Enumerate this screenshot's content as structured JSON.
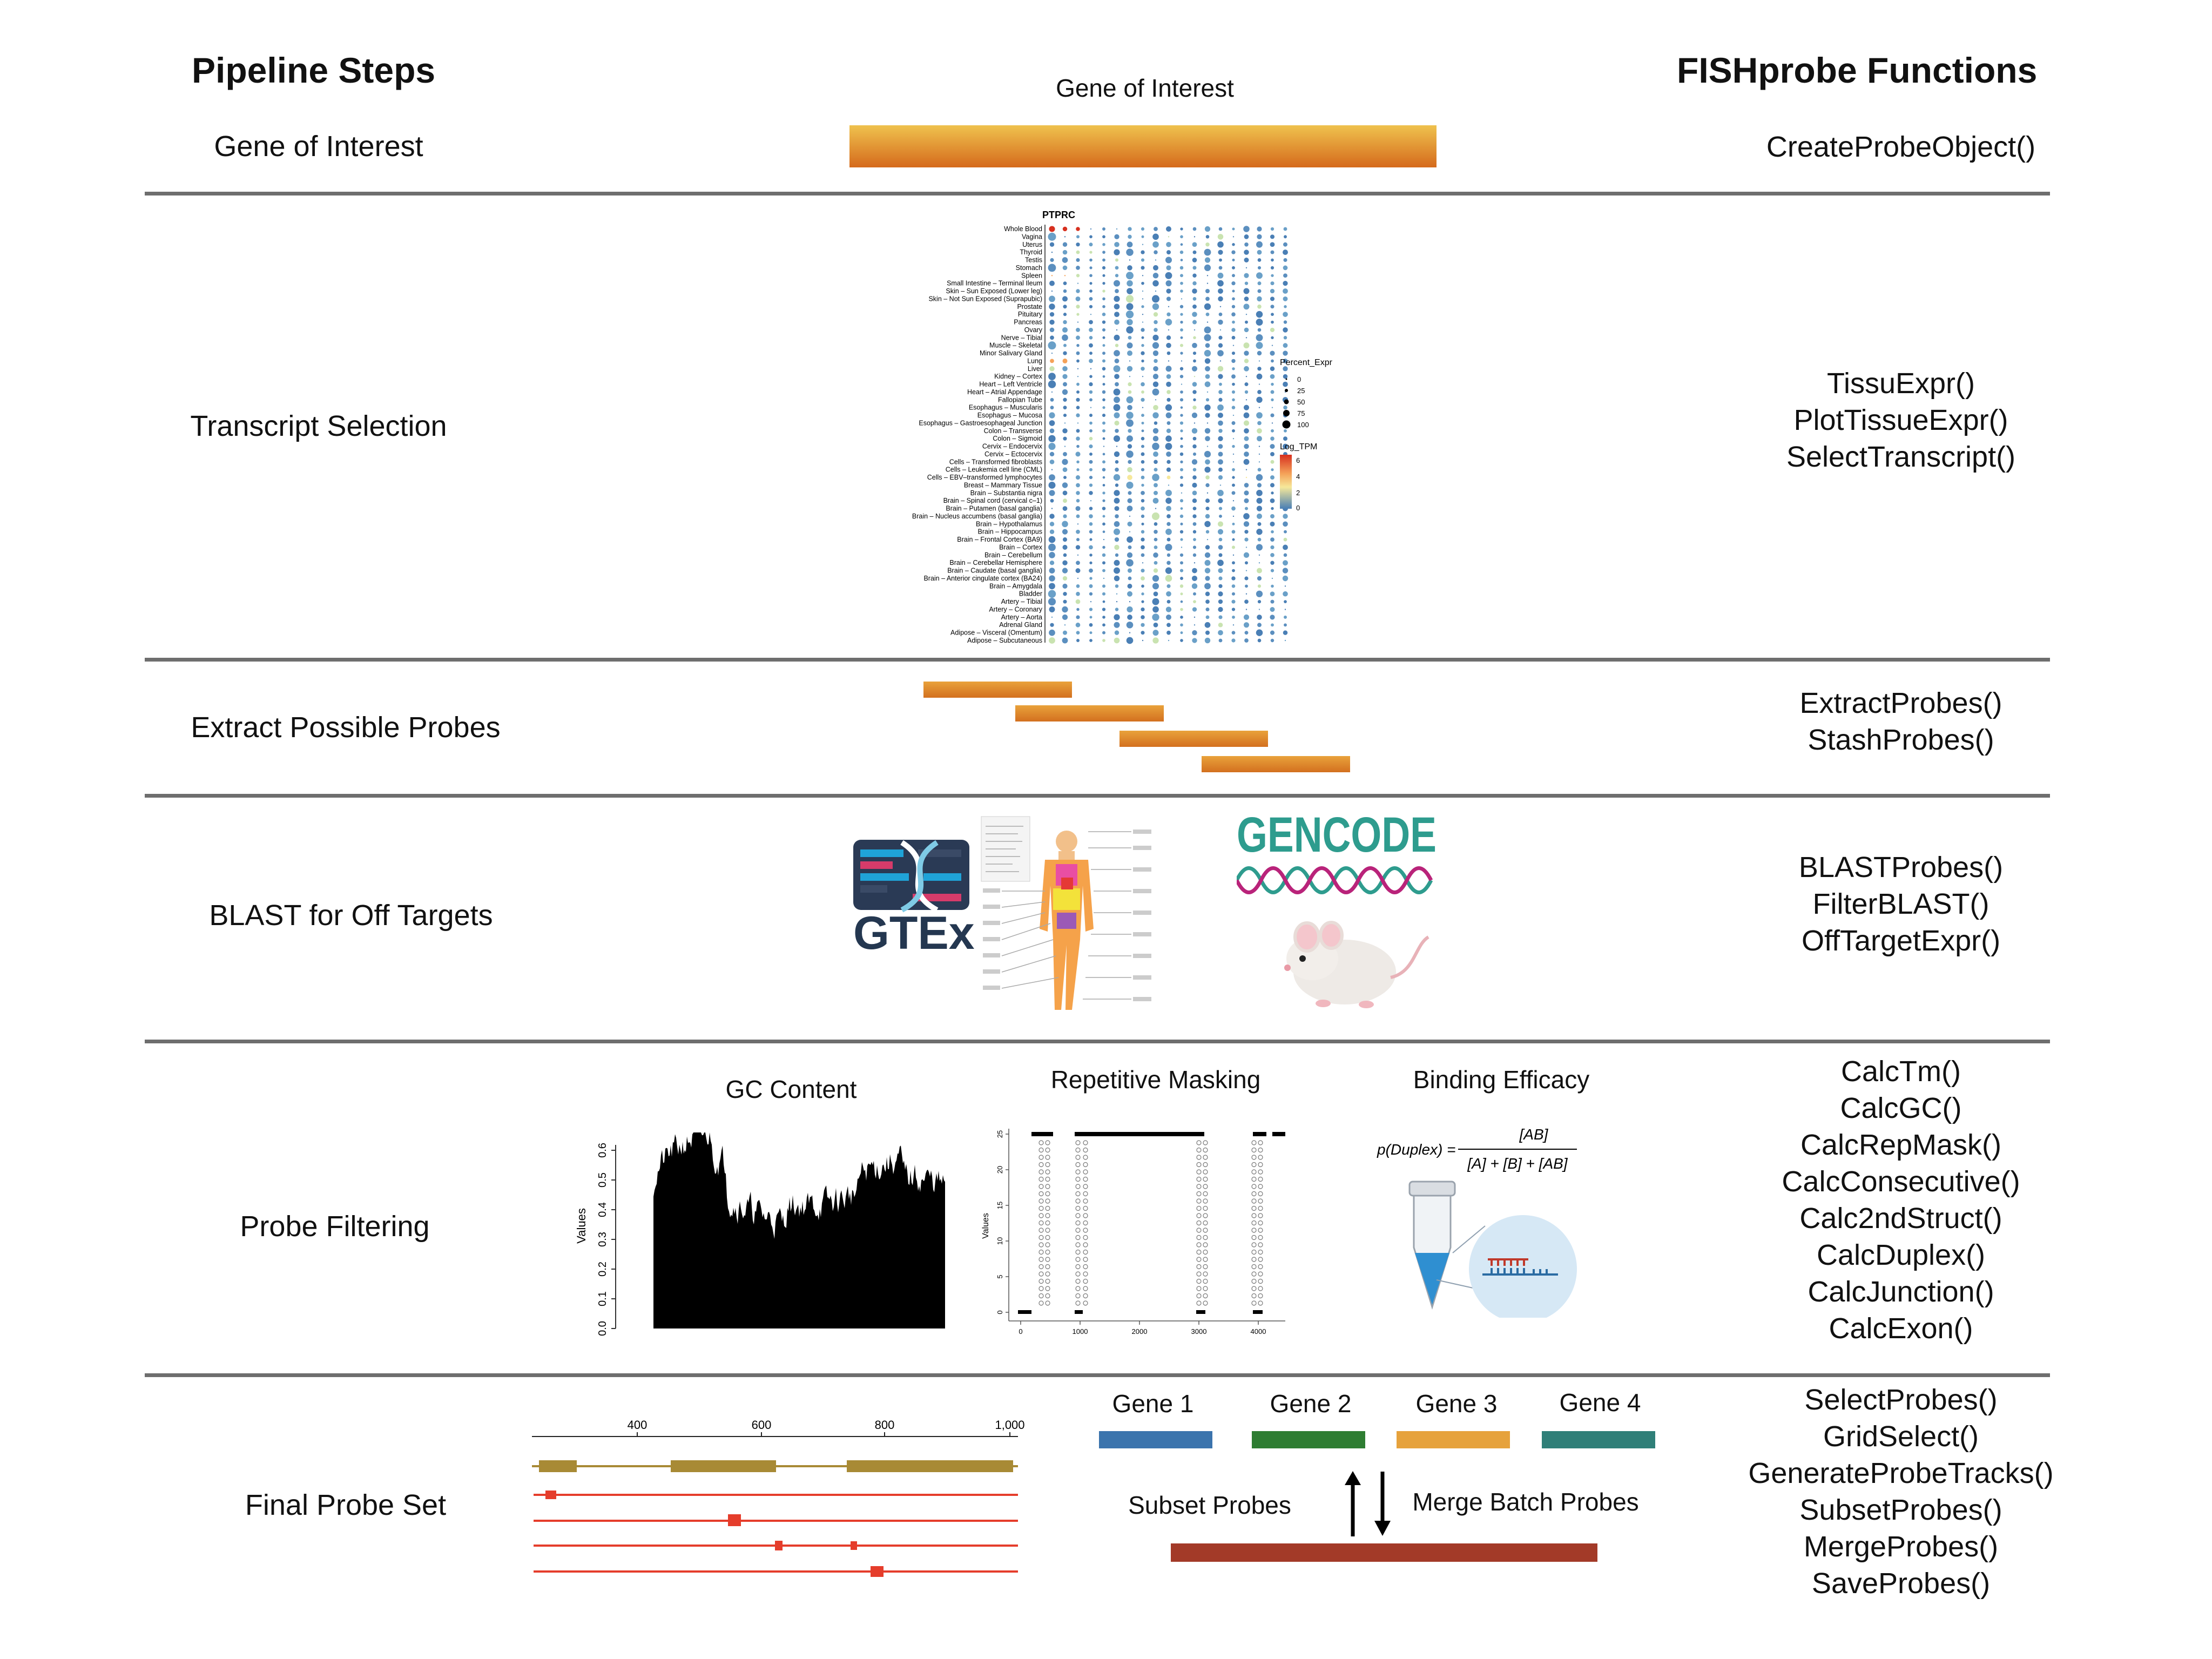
{
  "headers": {
    "left": "Pipeline Steps",
    "right": "FISHprobe Functions"
  },
  "steps": [
    {
      "label": "Gene of Interest",
      "functions": [
        "CreateProbeObject()"
      ]
    },
    {
      "label": "Transcript Selection",
      "functions": [
        "TissuExpr()",
        "PlotTissueExpr()",
        "SelectTranscript()"
      ]
    },
    {
      "label": "Extract Possible Probes",
      "functions": [
        "ExtractProbes()",
        "StashProbes()"
      ]
    },
    {
      "label": "BLAST for Off Targets",
      "functions": [
        "BLASTProbes()",
        "FilterBLAST()",
        "OffTargetExpr()"
      ]
    },
    {
      "label": "Probe Filtering",
      "functions": [
        "CalcTm()",
        "CalcGC()",
        "CalcRepMask()",
        "CalcConsecutive()",
        "Calc2ndStruct()",
        "CalcDuplex()",
        "CalcJunction()",
        "CalcExon()"
      ]
    },
    {
      "label": "Final Probe Set",
      "functions": [
        "SelectProbes()",
        "GridSelect()",
        "GenerateProbeTracks()",
        "SubsetProbes()",
        "MergeProbes()",
        "SaveProbes()"
      ]
    }
  ],
  "gene_of_interest": {
    "caption": "Gene of Interest"
  },
  "tissue_plot": {
    "title": "PTPRC",
    "tissues": [
      "Whole Blood",
      "Vagina",
      "Uterus",
      "Thyroid",
      "Testis",
      "Stomach",
      "Spleen",
      "Small Intestine – Terminal Ileum",
      "Skin – Sun Exposed (Lower leg)",
      "Skin – Not Sun Exposed (Suprapubic)",
      "Prostate",
      "Pituitary",
      "Pancreas",
      "Ovary",
      "Nerve – Tibial",
      "Muscle – Skeletal",
      "Minor Salivary Gland",
      "Lung",
      "Liver",
      "Kidney – Cortex",
      "Heart – Left Ventricle",
      "Heart – Atrial Appendage",
      "Fallopian Tube",
      "Esophagus – Muscularis",
      "Esophagus – Mucosa",
      "Esophagus – Gastroesophageal Junction",
      "Colon – Transverse",
      "Colon – Sigmoid",
      "Cervix – Endocervix",
      "Cervix – Ectocervix",
      "Cells – Transformed fibroblasts",
      "Cells – Leukemia cell line (CML)",
      "Cells – EBV–transformed lymphocytes",
      "Breast – Mammary Tissue",
      "Brain – Substantia nigra",
      "Brain – Spinal cord (cervical c–1)",
      "Brain – Putamen (basal ganglia)",
      "Brain – Nucleus accumbens (basal ganglia)",
      "Brain – Hypothalamus",
      "Brain – Hippocampus",
      "Brain – Frontal Cortex (BA9)",
      "Brain – Cortex",
      "Brain – Cerebellum",
      "Brain – Cerebellar Hemisphere",
      "Brain – Caudate (basal ganglia)",
      "Brain – Anterior cingulate cortex (BA24)",
      "Brain – Amygdala",
      "Bladder",
      "Artery – Tibial",
      "Artery – Coronary",
      "Artery – Aorta",
      "Adrenal Gland",
      "Adipose – Visceral (Omentum)",
      "Adipose – Subcutaneous"
    ],
    "legend_size_title": "Percent_Expr",
    "legend_size_values": [
      "0",
      "25",
      "50",
      "75",
      "100"
    ],
    "legend_color_title": "Log_TPM",
    "legend_color_values": [
      "6",
      "4",
      "2",
      "0"
    ]
  },
  "blast_panel": {
    "gtex_label": "GTEx",
    "gencode_label": "GENCODE"
  },
  "filtering": {
    "gc_caption": "GC Content",
    "gc_ylabel": "Values",
    "gc_yticks": [
      "0.0",
      "0.1",
      "0.2",
      "0.3",
      "0.4",
      "0.5",
      "0.6"
    ],
    "rep_caption": "Repetitive Masking",
    "rep_ylabel": "Values",
    "rep_yticks": [
      "0",
      "5",
      "10",
      "15",
      "20",
      "25"
    ],
    "rep_xticks": [
      "0",
      "1000",
      "2000",
      "3000",
      "4000"
    ],
    "bind_caption": "Binding Efficacy",
    "formula_lhs": "p(Duplex) =",
    "formula_num": "[AB]",
    "formula_den": "[A] + [B] + [AB]"
  },
  "final": {
    "track_ticks": [
      "400",
      "600",
      "800",
      "1,000"
    ],
    "genes": [
      "Gene 1",
      "Gene 2",
      "Gene 3",
      "Gene 4"
    ],
    "gene_colors": [
      "#3b74ad",
      "#2e7d32",
      "#e6a23c",
      "#2f7f78"
    ],
    "subset_label": "Subset Probes",
    "merge_label": "Merge Batch Probes",
    "merged_color": "#a33a28"
  }
}
